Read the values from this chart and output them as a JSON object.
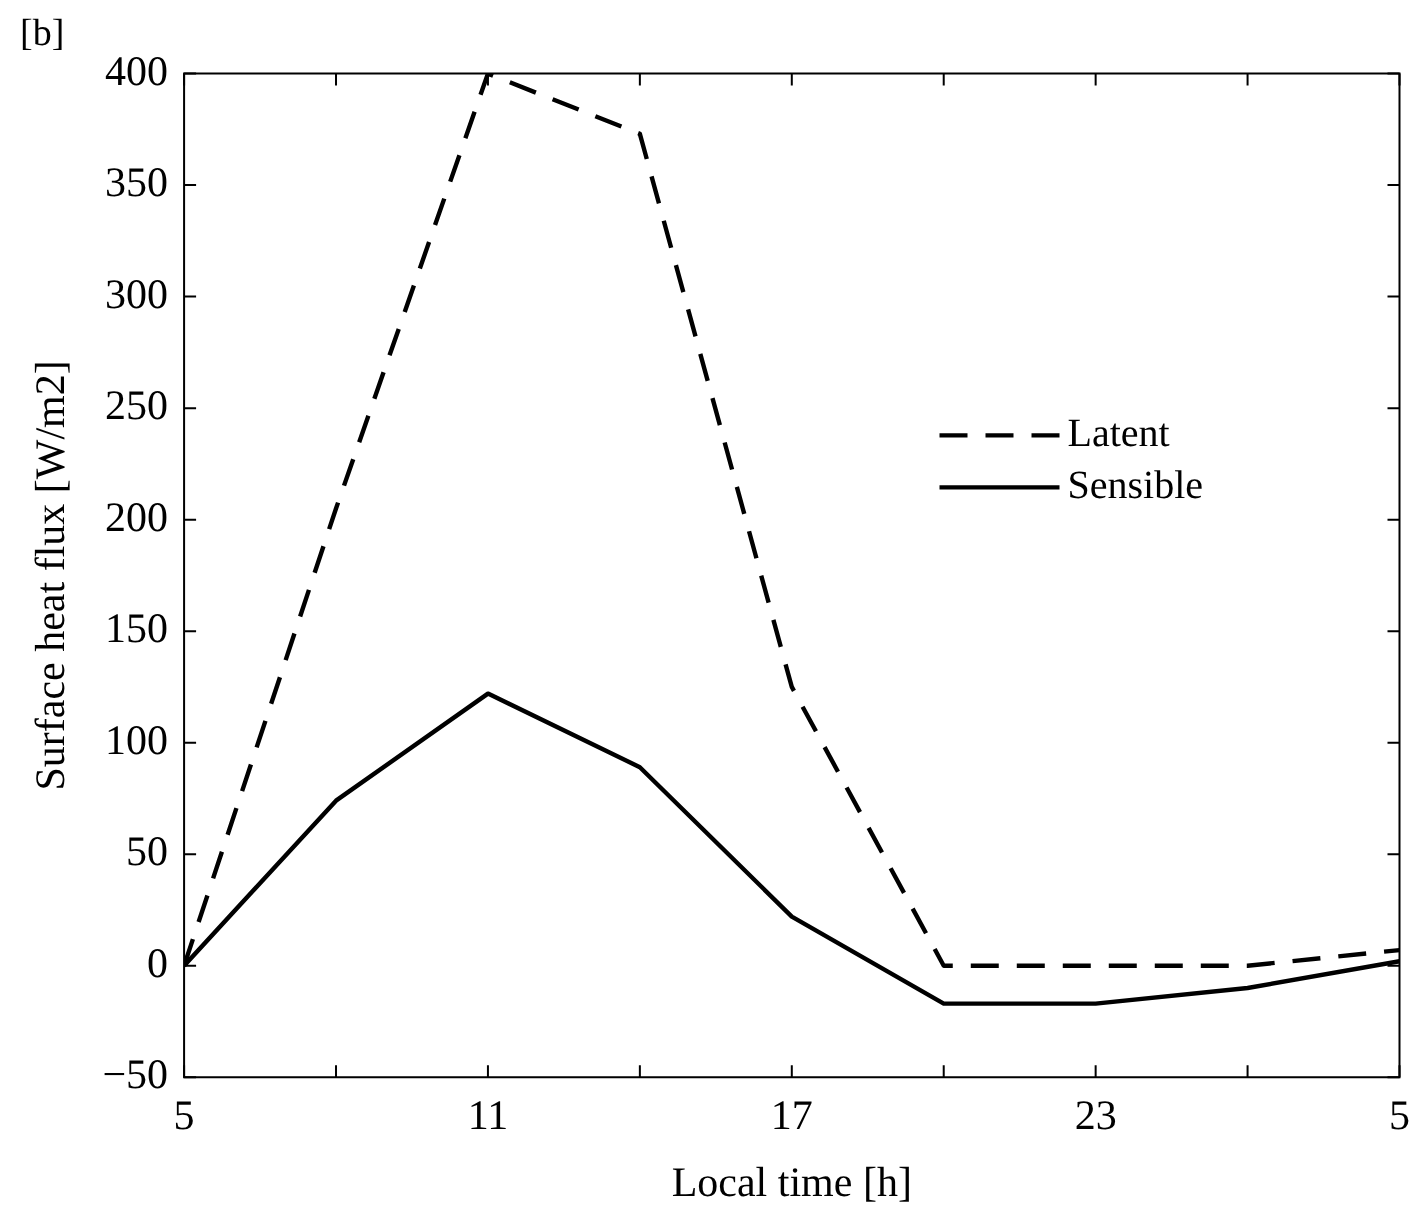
{
  "chart_data": {
    "type": "line",
    "title": "[b]",
    "xlabel": "Local time [h]",
    "ylabel": "Surface heat flux [W/m2]",
    "categories": [
      "5",
      null,
      "11",
      null,
      "17",
      null,
      "23",
      null,
      "5"
    ],
    "ylim": [
      -50,
      400
    ],
    "yticks": [
      -50,
      0,
      50,
      100,
      150,
      200,
      250,
      300,
      350,
      400
    ],
    "series": [
      {
        "name": "Latent",
        "color": "#000000",
        "line_style": "dashed",
        "values": [
          0,
          205,
          400,
          373,
          125,
          0,
          0,
          0,
          7
        ]
      },
      {
        "name": "Sensible",
        "color": "#000000",
        "line_style": "solid",
        "values": [
          0,
          74,
          122,
          89,
          22,
          -17,
          -17,
          -10,
          2
        ]
      }
    ],
    "marker": "none",
    "legend": "right"
  }
}
